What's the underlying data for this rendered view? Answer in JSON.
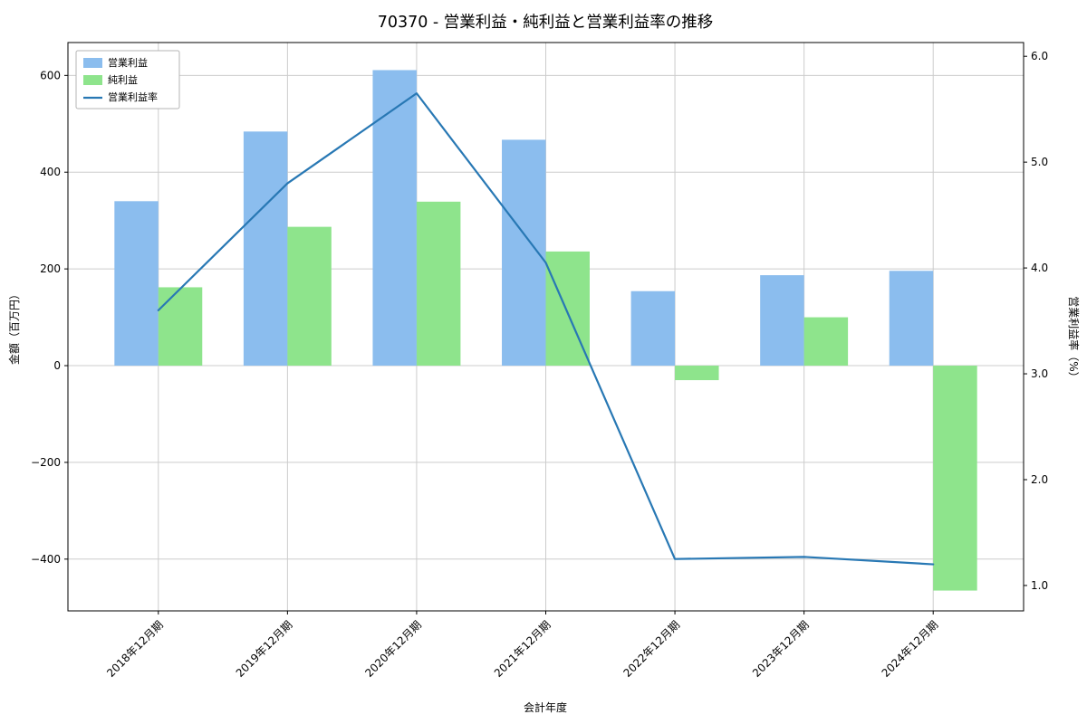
{
  "chart_data": {
    "type": "bar",
    "title": "70370 - 営業利益・純利益と営業利益率の推移",
    "xlabel": "会計年度",
    "ylabel_left": "金額（百万円）",
    "ylabel_right": "営業利益率（%）",
    "categories": [
      "2018年12月期",
      "2019年12月期",
      "2020年12月期",
      "2021年12月期",
      "2022年12月期",
      "2023年12月期",
      "2024年12月期"
    ],
    "series": [
      {
        "name": "営業利益",
        "type": "bar",
        "axis": "left",
        "color": "#8bbdee",
        "values": [
          340,
          484,
          611,
          467,
          154,
          187,
          196
        ]
      },
      {
        "name": "純利益",
        "type": "bar",
        "axis": "left",
        "color": "#8ee48c",
        "values": [
          162,
          287,
          339,
          236,
          -30,
          100,
          -465
        ]
      },
      {
        "name": "営業利益率",
        "type": "line",
        "axis": "right",
        "color": "#2878b4",
        "values": [
          3.6,
          4.8,
          5.65,
          4.05,
          1.25,
          1.27,
          1.2
        ]
      }
    ],
    "ylim_left": [
      -507,
      668
    ],
    "ylim_right": [
      0.76,
      6.13
    ],
    "yticks_left": [
      -400,
      -200,
      0,
      200,
      400,
      600
    ],
    "yticks_right": [
      1.0,
      2.0,
      3.0,
      4.0,
      5.0,
      6.0
    ],
    "grid": true,
    "legend_position": "upper-left",
    "colors": {
      "grid": "#cccccc",
      "frame": "#000000",
      "legend_border": "#b5b5b5"
    }
  }
}
